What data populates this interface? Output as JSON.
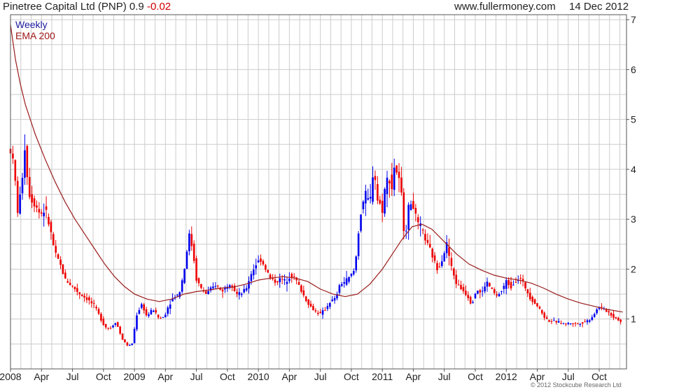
{
  "header": {
    "title": "Pinetree Capital Ltd (PNP)",
    "last": "0.9",
    "change": "-0.02",
    "site": "www.fullermoney.com",
    "date": "14 Dec 2012"
  },
  "footer": {
    "copyright": "© 2012 Stockcube Research Ltd"
  },
  "chart_data": {
    "type": "candlestick",
    "timeframe": "Weekly",
    "legend": [
      {
        "label": "Weekly",
        "color": "#1a1aa0"
      },
      {
        "label": "EMA 200",
        "color": "#a01818"
      }
    ],
    "colors": {
      "up": "#0000ee",
      "down": "#ee0000",
      "ema": "#9b1b1b",
      "grid": "#cccccc"
    },
    "xlim": [
      2008.0,
      2012.97
    ],
    "ylim": [
      0.0,
      7.1
    ],
    "x_ticks": [
      {
        "label": "2008",
        "t": 2008.0
      },
      {
        "label": "Apr",
        "t": 2008.25
      },
      {
        "label": "Jul",
        "t": 2008.5
      },
      {
        "label": "Oct",
        "t": 2008.75
      },
      {
        "label": "2009",
        "t": 2009.0
      },
      {
        "label": "Apr",
        "t": 2009.25
      },
      {
        "label": "Jul",
        "t": 2009.5
      },
      {
        "label": "Oct",
        "t": 2009.75
      },
      {
        "label": "2010",
        "t": 2010.0
      },
      {
        "label": "Apr",
        "t": 2010.25
      },
      {
        "label": "Jul",
        "t": 2010.5
      },
      {
        "label": "Oct",
        "t": 2010.75
      },
      {
        "label": "2011",
        "t": 2011.0
      },
      {
        "label": "Apr",
        "t": 2011.25
      },
      {
        "label": "Jul",
        "t": 2011.5
      },
      {
        "label": "Oct",
        "t": 2011.75
      },
      {
        "label": "2012",
        "t": 2012.0
      },
      {
        "label": "Apr",
        "t": 2012.25
      },
      {
        "label": "Jul",
        "t": 2012.5
      },
      {
        "label": "Oct",
        "t": 2012.75
      }
    ],
    "y_ticks": [
      1,
      2,
      3,
      4,
      5,
      6,
      7
    ],
    "price_path": [
      [
        2008.0,
        4.4
      ],
      [
        2008.03,
        4.0
      ],
      [
        2008.06,
        3.1
      ],
      [
        2008.09,
        3.7
      ],
      [
        2008.12,
        4.6
      ],
      [
        2008.14,
        3.6
      ],
      [
        2008.17,
        3.4
      ],
      [
        2008.2,
        3.3
      ],
      [
        2008.24,
        3.1
      ],
      [
        2008.28,
        3.2
      ],
      [
        2008.32,
        2.8
      ],
      [
        2008.36,
        2.3
      ],
      [
        2008.4,
        2.1
      ],
      [
        2008.44,
        1.8
      ],
      [
        2008.5,
        1.65
      ],
      [
        2008.56,
        1.5
      ],
      [
        2008.62,
        1.4
      ],
      [
        2008.68,
        1.25
      ],
      [
        2008.72,
        1.05
      ],
      [
        2008.76,
        0.85
      ],
      [
        2008.8,
        0.8
      ],
      [
        2008.85,
        0.95
      ],
      [
        2008.9,
        0.6
      ],
      [
        2008.95,
        0.45
      ],
      [
        2008.98,
        0.5
      ],
      [
        2009.02,
        1.1
      ],
      [
        2009.06,
        1.3
      ],
      [
        2009.1,
        1.05
      ],
      [
        2009.15,
        1.2
      ],
      [
        2009.2,
        1.0
      ],
      [
        2009.24,
        1.05
      ],
      [
        2009.28,
        1.3
      ],
      [
        2009.32,
        1.45
      ],
      [
        2009.36,
        1.5
      ],
      [
        2009.4,
        1.95
      ],
      [
        2009.44,
        2.7
      ],
      [
        2009.47,
        2.4
      ],
      [
        2009.5,
        1.8
      ],
      [
        2009.54,
        1.6
      ],
      [
        2009.58,
        1.5
      ],
      [
        2009.62,
        1.6
      ],
      [
        2009.66,
        1.7
      ],
      [
        2009.7,
        1.55
      ],
      [
        2009.74,
        1.65
      ],
      [
        2009.78,
        1.75
      ],
      [
        2009.82,
        1.5
      ],
      [
        2009.86,
        1.5
      ],
      [
        2009.9,
        1.6
      ],
      [
        2009.94,
        1.9
      ],
      [
        2009.98,
        2.1
      ],
      [
        2010.02,
        2.2
      ],
      [
        2010.06,
        2.0
      ],
      [
        2010.1,
        1.8
      ],
      [
        2010.14,
        1.75
      ],
      [
        2010.18,
        1.8
      ],
      [
        2010.22,
        1.75
      ],
      [
        2010.26,
        1.9
      ],
      [
        2010.3,
        1.8
      ],
      [
        2010.34,
        1.6
      ],
      [
        2010.38,
        1.4
      ],
      [
        2010.42,
        1.25
      ],
      [
        2010.46,
        1.15
      ],
      [
        2010.5,
        1.1
      ],
      [
        2010.54,
        1.2
      ],
      [
        2010.58,
        1.35
      ],
      [
        2010.62,
        1.4
      ],
      [
        2010.66,
        1.7
      ],
      [
        2010.7,
        1.75
      ],
      [
        2010.74,
        1.85
      ],
      [
        2010.78,
        2.0
      ],
      [
        2010.8,
        2.6
      ],
      [
        2010.83,
        3.2
      ],
      [
        2010.86,
        3.5
      ],
      [
        2010.9,
        3.3
      ],
      [
        2010.93,
        4.1
      ],
      [
        2010.96,
        3.4
      ],
      [
        2011.0,
        3.2
      ],
      [
        2011.02,
        3.6
      ],
      [
        2011.05,
        3.9
      ],
      [
        2011.08,
        3.6
      ],
      [
        2011.1,
        4.15
      ],
      [
        2011.12,
        3.9
      ],
      [
        2011.15,
        3.6
      ],
      [
        2011.18,
        2.6
      ],
      [
        2011.21,
        3.2
      ],
      [
        2011.24,
        3.4
      ],
      [
        2011.28,
        2.9
      ],
      [
        2011.32,
        2.8
      ],
      [
        2011.36,
        2.5
      ],
      [
        2011.4,
        2.3
      ],
      [
        2011.44,
        2.0
      ],
      [
        2011.48,
        2.2
      ],
      [
        2011.52,
        2.5
      ],
      [
        2011.56,
        2.0
      ],
      [
        2011.6,
        1.7
      ],
      [
        2011.64,
        1.6
      ],
      [
        2011.68,
        1.5
      ],
      [
        2011.72,
        1.3
      ],
      [
        2011.76,
        1.6
      ],
      [
        2011.8,
        1.5
      ],
      [
        2011.84,
        1.75
      ],
      [
        2011.88,
        1.6
      ],
      [
        2011.92,
        1.45
      ],
      [
        2011.96,
        1.55
      ],
      [
        2012.0,
        1.75
      ],
      [
        2012.04,
        1.65
      ],
      [
        2012.08,
        1.8
      ],
      [
        2012.12,
        1.8
      ],
      [
        2012.16,
        1.6
      ],
      [
        2012.2,
        1.4
      ],
      [
        2012.24,
        1.3
      ],
      [
        2012.28,
        1.15
      ],
      [
        2012.32,
        1.0
      ],
      [
        2012.36,
        0.95
      ],
      [
        2012.4,
        0.95
      ],
      [
        2012.44,
        0.92
      ],
      [
        2012.48,
        0.9
      ],
      [
        2012.52,
        0.92
      ],
      [
        2012.56,
        0.9
      ],
      [
        2012.6,
        0.92
      ],
      [
        2012.64,
        0.95
      ],
      [
        2012.68,
        1.0
      ],
      [
        2012.72,
        1.15
      ],
      [
        2012.75,
        1.25
      ],
      [
        2012.78,
        1.2
      ],
      [
        2012.82,
        1.15
      ],
      [
        2012.86,
        1.05
      ],
      [
        2012.9,
        1.0
      ],
      [
        2012.94,
        0.9
      ]
    ],
    "ema_200": [
      [
        2008.0,
        6.9
      ],
      [
        2008.04,
        6.2
      ],
      [
        2008.08,
        5.7
      ],
      [
        2008.12,
        5.3
      ],
      [
        2008.16,
        5.0
      ],
      [
        2008.2,
        4.7
      ],
      [
        2008.28,
        4.2
      ],
      [
        2008.36,
        3.75
      ],
      [
        2008.44,
        3.35
      ],
      [
        2008.52,
        3.0
      ],
      [
        2008.6,
        2.7
      ],
      [
        2008.68,
        2.4
      ],
      [
        2008.76,
        2.1
      ],
      [
        2008.84,
        1.85
      ],
      [
        2008.92,
        1.65
      ],
      [
        2009.0,
        1.5
      ],
      [
        2009.1,
        1.4
      ],
      [
        2009.2,
        1.35
      ],
      [
        2009.3,
        1.4
      ],
      [
        2009.4,
        1.5
      ],
      [
        2009.5,
        1.55
      ],
      [
        2009.6,
        1.58
      ],
      [
        2009.7,
        1.62
      ],
      [
        2009.8,
        1.64
      ],
      [
        2009.9,
        1.7
      ],
      [
        2010.0,
        1.78
      ],
      [
        2010.1,
        1.82
      ],
      [
        2010.2,
        1.85
      ],
      [
        2010.3,
        1.82
      ],
      [
        2010.4,
        1.75
      ],
      [
        2010.5,
        1.6
      ],
      [
        2010.6,
        1.5
      ],
      [
        2010.7,
        1.45
      ],
      [
        2010.8,
        1.5
      ],
      [
        2010.9,
        1.7
      ],
      [
        2011.0,
        2.0
      ],
      [
        2011.08,
        2.3
      ],
      [
        2011.16,
        2.6
      ],
      [
        2011.24,
        2.85
      ],
      [
        2011.32,
        2.9
      ],
      [
        2011.4,
        2.8
      ],
      [
        2011.5,
        2.55
      ],
      [
        2011.6,
        2.3
      ],
      [
        2011.7,
        2.1
      ],
      [
        2011.8,
        1.98
      ],
      [
        2011.9,
        1.88
      ],
      [
        2012.0,
        1.82
      ],
      [
        2012.1,
        1.78
      ],
      [
        2012.2,
        1.72
      ],
      [
        2012.3,
        1.62
      ],
      [
        2012.4,
        1.5
      ],
      [
        2012.5,
        1.4
      ],
      [
        2012.6,
        1.32
      ],
      [
        2012.7,
        1.26
      ],
      [
        2012.8,
        1.2
      ],
      [
        2012.94,
        1.14
      ]
    ]
  }
}
